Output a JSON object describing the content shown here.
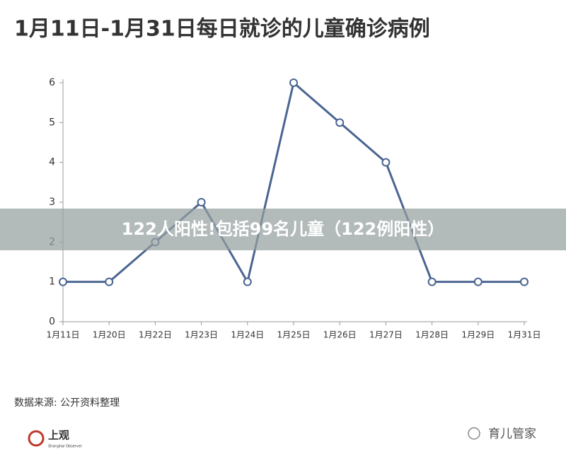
{
  "chart_data": {
    "type": "line",
    "title": "1月11日-1月31日每日就诊的儿童确诊病例",
    "categories": [
      "1月11日",
      "1月20日",
      "1月22日",
      "1月23日",
      "1月24日",
      "1月25日",
      "1月26日",
      "1月27日",
      "1月28日",
      "1月29日",
      "1月31日"
    ],
    "values": [
      1,
      1,
      2,
      3,
      1,
      6,
      5,
      4,
      1,
      1,
      1
    ],
    "color": "#4a6591",
    "ylim": [
      0,
      6
    ],
    "yticks": [
      0,
      1,
      2,
      3,
      4,
      5,
      6
    ],
    "grid": false,
    "source": "数据来源: 公开资料整理",
    "overlay_caption": "122人阳性!包括99名儿童（122例阳性）",
    "logo": "上观",
    "logo_subtitle": "Shanghai Observer",
    "watermark": "育儿管家"
  }
}
